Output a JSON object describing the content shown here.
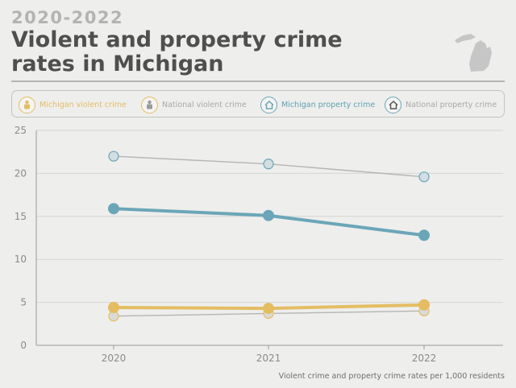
{
  "header": {
    "period": "2020-2022",
    "title": "Violent and property crime rates in Michigan"
  },
  "colors": {
    "michigan_violent": "#e4bd63",
    "national_violent": "#b5b5b5",
    "michigan_property": "#6aa6b8",
    "national_property": "#b5b5b5",
    "text": "#4f4f4f",
    "axis": "#8a8a8a"
  },
  "legend": [
    {
      "label": "Michigan violent crime",
      "icon": "handcuffs-icon",
      "color": "#e4bd63",
      "text_color": "#e4bd63"
    },
    {
      "label": "National violent crime",
      "icon": "handcuffs-icon",
      "color": "#e4bd63",
      "text_color": "#a8a8a8"
    },
    {
      "label": "Michigan property crime",
      "icon": "house-icon",
      "color": "#6aa6b8",
      "text_color": "#5f9fb3"
    },
    {
      "label": "National property crime",
      "icon": "house-icon",
      "color": "#6aa6b8",
      "text_color": "#a8a8a8"
    }
  ],
  "chart_data": {
    "type": "line",
    "x": [
      "2020",
      "2021",
      "2022"
    ],
    "ylim": [
      0,
      25
    ],
    "yticks": [
      0,
      5,
      10,
      15,
      20,
      25
    ],
    "grid": true,
    "legend_position": "top",
    "series": [
      {
        "name": "National property crime",
        "values": [
          22.0,
          21.1,
          19.6
        ],
        "color": "#b5b5b5",
        "marker_fill": "#d3dde2",
        "marker_stroke": "#6aa6b8",
        "style": "thin"
      },
      {
        "name": "National violent crime",
        "values": [
          3.4,
          3.7,
          4.0
        ],
        "color": "#b5b5b5",
        "marker_fill": "#dadad8",
        "marker_stroke": "#e4bd63",
        "style": "thin"
      },
      {
        "name": "Michigan violent crime",
        "values": [
          4.4,
          4.3,
          4.7
        ],
        "color": "#e4bd63",
        "marker_fill": "#e4bd63",
        "marker_stroke": "#e4bd63",
        "style": "thick"
      },
      {
        "name": "Michigan property crime",
        "values": [
          15.9,
          15.1,
          12.8
        ],
        "color": "#6aa6b8",
        "marker_fill": "#6aa6b8",
        "marker_stroke": "#6aa6b8",
        "style": "thick"
      }
    ]
  },
  "caption": "Violent crime and property crime rates per 1,000 residents"
}
